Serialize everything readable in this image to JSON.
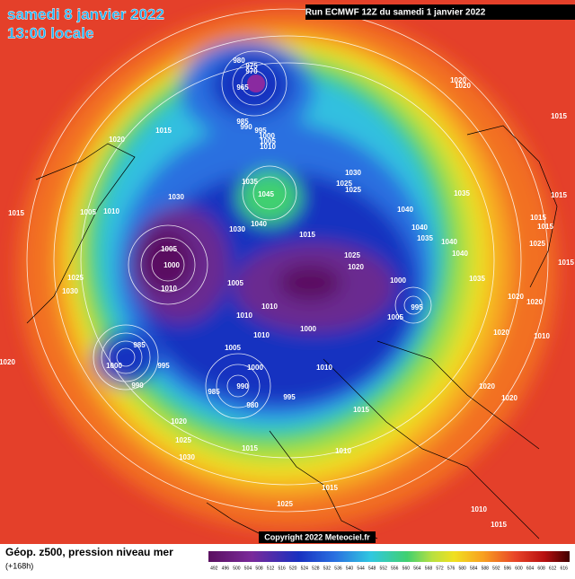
{
  "header": {
    "date": "samedi 8 janvier 2022",
    "time": "13:00 locale",
    "run": "Run ECMWF 12Z du samedi 1 janvier 2022"
  },
  "footer": {
    "label": "Géop. z500, pression niveau mer",
    "lead": "(+168h)",
    "copyright": "Copyright 2022 Meteociel.fr"
  },
  "scale": {
    "labels": [
      "492",
      "496",
      "500",
      "504",
      "508",
      "512",
      "516",
      "520",
      "524",
      "528",
      "532",
      "536",
      "540",
      "544",
      "548",
      "552",
      "556",
      "560",
      "564",
      "568",
      "572",
      "576",
      "580",
      "584",
      "588",
      "592",
      "596",
      "600",
      "604",
      "608",
      "612",
      "616"
    ]
  },
  "isobars": [
    "980",
    "975",
    "970",
    "965",
    "1015",
    "1020",
    "985",
    "990",
    "995",
    "1000",
    "1005",
    "1010",
    "1020",
    "1020",
    "1015",
    "1030",
    "1025",
    "1025",
    "1035",
    "1045",
    "1030",
    "1005",
    "1010",
    "1015",
    "1040",
    "1030",
    "1015",
    "1040",
    "1040",
    "1035",
    "1040",
    "1040",
    "1035",
    "1015",
    "1015",
    "1015",
    "1025",
    "1015",
    "1005",
    "1000",
    "1010",
    "1025",
    "1030",
    "1025",
    "1020",
    "1035",
    "1020",
    "1020",
    "1005",
    "1000",
    "995",
    "1005",
    "1010",
    "1010",
    "1010",
    "1000",
    "1005",
    "985",
    "995",
    "990",
    "1000",
    "1000",
    "1010",
    "990",
    "985",
    "980",
    "995",
    "1015",
    "1020",
    "1020",
    "1020",
    "1010",
    "1020",
    "1020",
    "1025",
    "1030",
    "1015",
    "1010",
    "1015",
    "1025",
    "1010",
    "1015"
  ]
}
